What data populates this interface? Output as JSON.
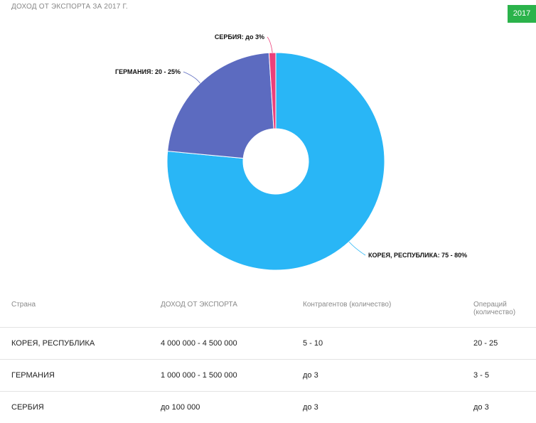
{
  "header": {
    "title": "ДОХОД ОТ ЭКСПОРТА ЗА 2017 Г.",
    "year_badge": "2017"
  },
  "colors": {
    "korea": "#29b6f6",
    "germany": "#5c6bc0",
    "serbia": "#ec407a",
    "badge": "#2bb34b"
  },
  "chart_data": {
    "type": "pie",
    "donut": true,
    "slices": [
      {
        "label": "КОРЕЯ, РЕСПУБЛИКА: 75 - 80%",
        "value": 76.5,
        "color": "#29b6f6"
      },
      {
        "label": "ГЕРМАНИЯ: 20 - 25%",
        "value": 22.5,
        "color": "#5c6bc0"
      },
      {
        "label": "СЕРБИЯ: до 3%",
        "value": 1.0,
        "color": "#ec407a"
      }
    ]
  },
  "table": {
    "headers": [
      "Страна",
      "ДОХОД ОТ ЭКСПОРТА",
      "Контрагентов (количество)",
      "Операций (количество)"
    ],
    "rows": [
      [
        "КОРЕЯ, РЕСПУБЛИКА",
        "4 000 000 - 4 500 000",
        "5 - 10",
        "20 - 25"
      ],
      [
        "ГЕРМАНИЯ",
        "1 000 000 - 1 500 000",
        "до 3",
        "3 - 5"
      ],
      [
        "СЕРБИЯ",
        "до 100 000",
        "до 3",
        "до 3"
      ]
    ]
  }
}
